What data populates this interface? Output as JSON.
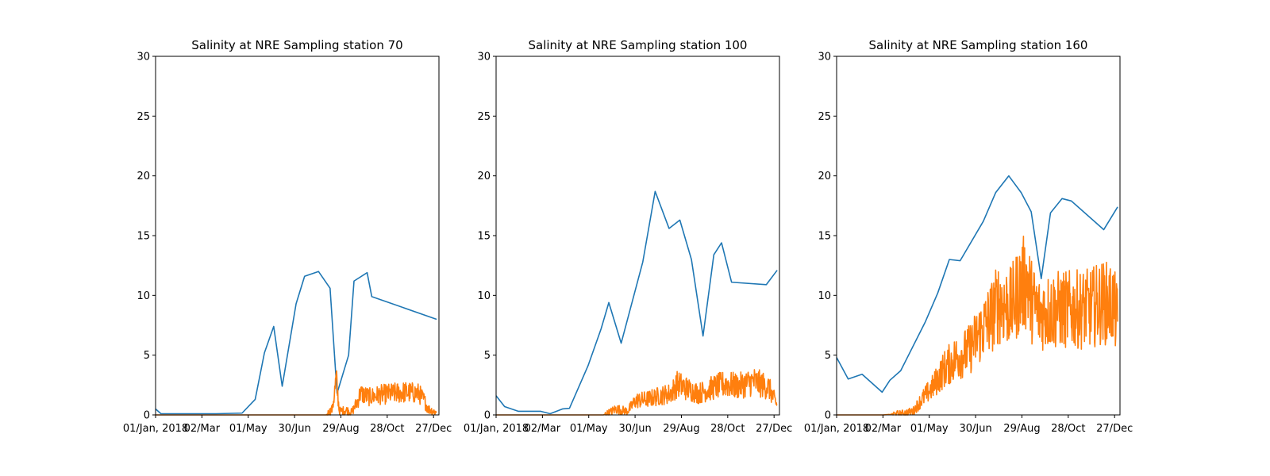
{
  "chart_data": [
    {
      "type": "line",
      "title": "Salinity at NRE Sampling station 70",
      "xlabel": "",
      "ylabel": "",
      "ylim": [
        0,
        30
      ],
      "yticks": [
        0,
        5,
        10,
        15,
        20,
        25,
        30
      ],
      "xlim": [
        "2018-01-01",
        "2019-01-03"
      ],
      "xticks": [
        {
          "date": "2018-01-01",
          "label": "01/Jan, 2018"
        },
        {
          "date": "2018-03-02",
          "label": "02/Mar"
        },
        {
          "date": "2018-05-01",
          "label": "01/May"
        },
        {
          "date": "2018-06-30",
          "label": "30/Jun"
        },
        {
          "date": "2018-08-29",
          "label": "29/Aug"
        },
        {
          "date": "2018-10-28",
          "label": "28/Oct"
        },
        {
          "date": "2018-12-27",
          "label": "27/Dec"
        }
      ],
      "grid": false,
      "series": [
        {
          "color": "#1f77b4",
          "points": [
            [
              "2018-01-01",
              0.5
            ],
            [
              "2018-01-08",
              0.1
            ],
            [
              "2018-02-18",
              0.1
            ],
            [
              "2018-03-20",
              0.1
            ],
            [
              "2018-04-23",
              0.15
            ],
            [
              "2018-05-10",
              1.3
            ],
            [
              "2018-05-22",
              5.2
            ],
            [
              "2018-06-03",
              7.4
            ],
            [
              "2018-06-14",
              2.4
            ],
            [
              "2018-07-02",
              9.3
            ],
            [
              "2018-07-13",
              11.6
            ],
            [
              "2018-07-31",
              12.0
            ],
            [
              "2018-08-15",
              10.6
            ],
            [
              "2018-08-24",
              1.8
            ],
            [
              "2018-09-08",
              5.0
            ],
            [
              "2018-09-15",
              11.2
            ],
            [
              "2018-10-02",
              11.9
            ],
            [
              "2018-10-08",
              9.9
            ],
            [
              "2018-12-31",
              8.0
            ]
          ]
        },
        {
          "color": "#ff7f0e",
          "noisy": true,
          "points": [
            [
              "2018-01-01",
              0
            ],
            [
              "2018-08-10",
              0
            ],
            [
              "2018-08-18",
              0.5
            ],
            [
              "2018-08-23",
              3.0
            ],
            [
              "2018-08-27",
              0.3
            ],
            [
              "2018-09-05",
              0.4
            ],
            [
              "2018-09-12",
              0.2
            ],
            [
              "2018-09-20",
              1.2
            ],
            [
              "2018-09-23",
              1.8
            ],
            [
              "2018-10-05",
              1.5
            ],
            [
              "2018-10-20",
              1.7
            ],
            [
              "2018-11-05",
              1.8
            ],
            [
              "2018-11-20",
              1.9
            ],
            [
              "2018-12-08",
              1.8
            ],
            [
              "2018-12-15",
              1.2
            ],
            [
              "2018-12-20",
              0.5
            ],
            [
              "2018-12-31",
              0.2
            ]
          ]
        }
      ]
    },
    {
      "type": "line",
      "title": "Salinity at NRE Sampling station 100",
      "xlabel": "",
      "ylabel": "",
      "ylim": [
        0,
        30
      ],
      "yticks": [
        0,
        5,
        10,
        15,
        20,
        25,
        30
      ],
      "xlim": [
        "2018-01-01",
        "2019-01-03"
      ],
      "xticks": [
        {
          "date": "2018-01-01",
          "label": "01/Jan, 2018"
        },
        {
          "date": "2018-03-02",
          "label": "02/Mar"
        },
        {
          "date": "2018-05-01",
          "label": "01/May"
        },
        {
          "date": "2018-06-30",
          "label": "30/Jun"
        },
        {
          "date": "2018-08-29",
          "label": "29/Aug"
        },
        {
          "date": "2018-10-28",
          "label": "28/Oct"
        },
        {
          "date": "2018-12-27",
          "label": "27/Dec"
        }
      ],
      "grid": false,
      "series": [
        {
          "color": "#1f77b4",
          "points": [
            [
              "2018-01-01",
              1.6
            ],
            [
              "2018-01-12",
              0.7
            ],
            [
              "2018-01-30",
              0.3
            ],
            [
              "2018-02-28",
              0.3
            ],
            [
              "2018-03-12",
              0.1
            ],
            [
              "2018-03-28",
              0.5
            ],
            [
              "2018-04-06",
              0.55
            ],
            [
              "2018-04-30",
              4.1
            ],
            [
              "2018-05-17",
              7.2
            ],
            [
              "2018-05-27",
              9.4
            ],
            [
              "2018-06-12",
              6.0
            ],
            [
              "2018-07-10",
              12.8
            ],
            [
              "2018-07-26",
              18.7
            ],
            [
              "2018-08-13",
              15.6
            ],
            [
              "2018-08-27",
              16.3
            ],
            [
              "2018-09-11",
              13.0
            ],
            [
              "2018-09-26",
              6.6
            ],
            [
              "2018-10-10",
              13.4
            ],
            [
              "2018-10-20",
              14.4
            ],
            [
              "2018-11-02",
              11.1
            ],
            [
              "2018-12-17",
              10.9
            ],
            [
              "2018-12-31",
              12.1
            ]
          ]
        },
        {
          "color": "#ff7f0e",
          "noisy": true,
          "points": [
            [
              "2018-01-01",
              0
            ],
            [
              "2018-05-20",
              0
            ],
            [
              "2018-05-28",
              0.2
            ],
            [
              "2018-06-05",
              0.5
            ],
            [
              "2018-06-20",
              0.3
            ],
            [
              "2018-07-01",
              1.2
            ],
            [
              "2018-07-15",
              1.3
            ],
            [
              "2018-08-01",
              1.6
            ],
            [
              "2018-08-15",
              1.8
            ],
            [
              "2018-08-24",
              2.6
            ],
            [
              "2018-09-05",
              2.2
            ],
            [
              "2018-09-20",
              1.8
            ],
            [
              "2018-10-10",
              2.3
            ],
            [
              "2018-10-25",
              2.6
            ],
            [
              "2018-11-10",
              2.4
            ],
            [
              "2018-12-01",
              2.8
            ],
            [
              "2018-12-20",
              2.3
            ],
            [
              "2018-12-31",
              0.8
            ]
          ]
        }
      ]
    },
    {
      "type": "line",
      "title": "Salinity at NRE Sampling station 160",
      "xlabel": "",
      "ylabel": "",
      "ylim": [
        0,
        30
      ],
      "yticks": [
        0,
        5,
        10,
        15,
        20,
        25,
        30
      ],
      "xlim": [
        "2018-01-01",
        "2019-01-03"
      ],
      "xticks": [
        {
          "date": "2018-01-01",
          "label": "01/Jan, 2018"
        },
        {
          "date": "2018-03-02",
          "label": "02/Mar"
        },
        {
          "date": "2018-05-01",
          "label": "01/May"
        },
        {
          "date": "2018-06-30",
          "label": "30/Jun"
        },
        {
          "date": "2018-08-29",
          "label": "29/Aug"
        },
        {
          "date": "2018-10-28",
          "label": "28/Oct"
        },
        {
          "date": "2018-12-27",
          "label": "27/Dec"
        }
      ],
      "grid": false,
      "series": [
        {
          "color": "#1f77b4",
          "points": [
            [
              "2018-01-01",
              4.8
            ],
            [
              "2018-01-16",
              3.0
            ],
            [
              "2018-02-03",
              3.4
            ],
            [
              "2018-03-01",
              1.9
            ],
            [
              "2018-03-11",
              2.9
            ],
            [
              "2018-03-25",
              3.7
            ],
            [
              "2018-04-26",
              7.8
            ],
            [
              "2018-05-12",
              10.2
            ],
            [
              "2018-05-27",
              13.0
            ],
            [
              "2018-06-10",
              12.9
            ],
            [
              "2018-07-10",
              16.2
            ],
            [
              "2018-07-26",
              18.6
            ],
            [
              "2018-08-12",
              20.0
            ],
            [
              "2018-08-28",
              18.6
            ],
            [
              "2018-09-10",
              17.0
            ],
            [
              "2018-09-23",
              11.4
            ],
            [
              "2018-10-05",
              16.9
            ],
            [
              "2018-10-20",
              18.1
            ],
            [
              "2018-11-01",
              17.9
            ],
            [
              "2018-12-13",
              15.5
            ],
            [
              "2018-12-31",
              17.4
            ]
          ]
        },
        {
          "color": "#ff7f0e",
          "noisy": true,
          "points": [
            [
              "2018-01-01",
              0
            ],
            [
              "2018-03-02",
              0
            ],
            [
              "2018-03-25",
              0.1
            ],
            [
              "2018-04-10",
              0.3
            ],
            [
              "2018-04-20",
              1.2
            ],
            [
              "2018-05-05",
              2.3
            ],
            [
              "2018-05-20",
              3.8
            ],
            [
              "2018-06-05",
              4.8
            ],
            [
              "2018-06-20",
              5.3
            ],
            [
              "2018-07-05",
              6.8
            ],
            [
              "2018-07-20",
              8.2
            ],
            [
              "2018-07-30",
              9.4
            ],
            [
              "2018-08-15",
              9.0
            ],
            [
              "2018-08-28",
              10.8
            ],
            [
              "2018-09-05",
              11.2
            ],
            [
              "2018-09-10",
              9.6
            ],
            [
              "2018-09-20",
              8.5
            ],
            [
              "2018-10-10",
              8.8
            ],
            [
              "2018-11-05",
              8.8
            ],
            [
              "2018-11-25",
              8.9
            ],
            [
              "2018-12-10",
              9.4
            ],
            [
              "2018-12-25",
              9.3
            ],
            [
              "2018-12-31",
              7.8
            ]
          ]
        }
      ]
    }
  ]
}
